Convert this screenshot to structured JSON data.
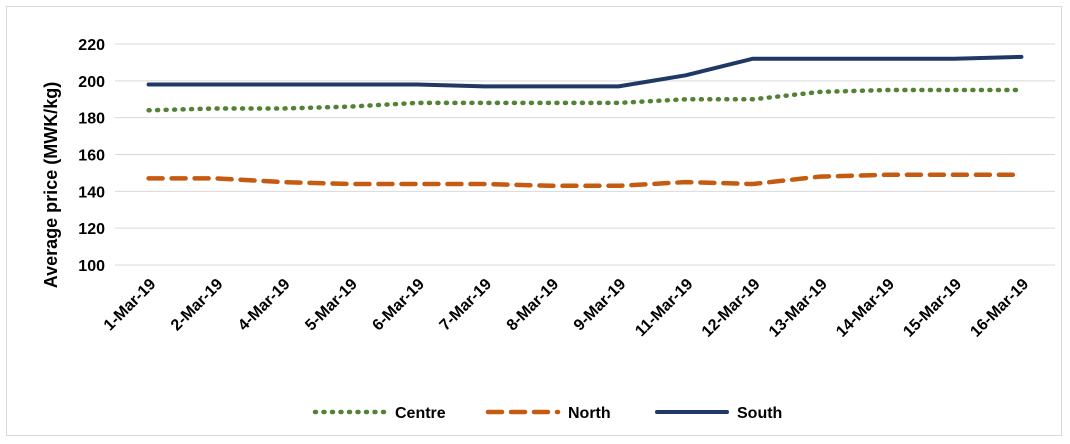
{
  "chart_data": {
    "type": "line",
    "categories": [
      "1-Mar-19",
      "2-Mar-19",
      "4-Mar-19",
      "5-Mar-19",
      "6-Mar-19",
      "7-Mar-19",
      "8-Mar-19",
      "9-Mar-19",
      "11-Mar-19",
      "12-Mar-19",
      "13-Mar-19",
      "14-Mar-19",
      "15-Mar-19",
      "16-Mar-19"
    ],
    "ylabel": "Average price (MWK/kg)",
    "xlabel": "",
    "ylim": [
      100,
      220
    ],
    "yticks": [
      "100",
      "120",
      "140",
      "160",
      "180",
      "200",
      "220"
    ],
    "grid": true,
    "legend_position": "bottom",
    "series": [
      {
        "name": "Centre",
        "color": "#548235",
        "style": "dotted",
        "values": [
          184,
          185,
          185,
          186,
          188,
          188,
          188,
          188,
          190,
          190,
          194,
          195,
          195,
          195
        ]
      },
      {
        "name": "North",
        "color": "#c55a11",
        "style": "dashed",
        "values": [
          147,
          147,
          145,
          144,
          144,
          144,
          143,
          143,
          145,
          144,
          148,
          149,
          149,
          149
        ]
      },
      {
        "name": "South",
        "color": "#203864",
        "style": "solid",
        "values": [
          198,
          198,
          198,
          198,
          198,
          197,
          197,
          197,
          203,
          212,
          212,
          212,
          212,
          213
        ]
      }
    ]
  }
}
